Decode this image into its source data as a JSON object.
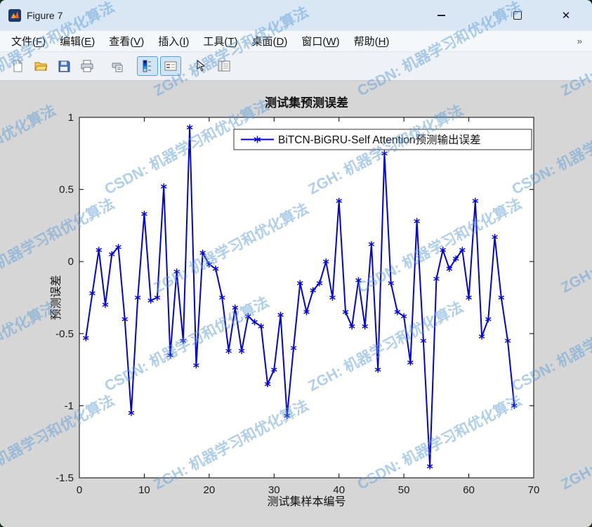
{
  "window": {
    "title": "Figure 7",
    "close_glyph": "✕"
  },
  "menu": {
    "items": [
      {
        "label": "文件",
        "key": "F"
      },
      {
        "label": "编辑",
        "key": "E"
      },
      {
        "label": "查看",
        "key": "V"
      },
      {
        "label": "插入",
        "key": "I"
      },
      {
        "label": "工具",
        "key": "T"
      },
      {
        "label": "桌面",
        "key": "D"
      },
      {
        "label": "窗口",
        "key": "W"
      },
      {
        "label": "帮助",
        "key": "H"
      }
    ],
    "overflow_glyph": "»"
  },
  "toolbar": {
    "buttons": [
      {
        "icon": "new-figure",
        "active": false
      },
      {
        "icon": "open-file",
        "active": false
      },
      {
        "icon": "save-figure",
        "active": false
      },
      {
        "icon": "print-figure",
        "active": false
      },
      {
        "icon": "print-preview",
        "active": false,
        "gap": true
      },
      {
        "icon": "insert-colorbar",
        "active": true,
        "gap": true
      },
      {
        "icon": "insert-legend",
        "active": true
      },
      {
        "icon": "edit-plot",
        "active": false,
        "gap": true
      },
      {
        "icon": "plot-browser",
        "active": false
      }
    ]
  },
  "watermark": {
    "texts": [
      "ZGH: 机器学习和优化算法",
      "CSDN: 机器学习和优化算法"
    ],
    "color": "rgba(96,158,214,0.5)"
  },
  "chart_data": {
    "type": "line",
    "title": "测试集预测误差",
    "xlabel": "测试集样本编号",
    "ylabel": "预测误差",
    "xlim": [
      0,
      70
    ],
    "ylim": [
      -1.5,
      1
    ],
    "xticks": [
      0,
      10,
      20,
      30,
      40,
      50,
      60,
      70
    ],
    "yticks": [
      1,
      0.5,
      0,
      -0.5,
      -1,
      -1.5
    ],
    "grid": false,
    "legend_position": "top-inside",
    "series": [
      {
        "name": "BiTCN-BiGRU-Self Attention预测输出误差",
        "color": "#0000E0",
        "marker": "*",
        "x_start": 1,
        "values": [
          -0.53,
          -0.22,
          0.08,
          -0.3,
          0.05,
          0.1,
          -0.4,
          -1.05,
          -0.25,
          0.33,
          -0.27,
          -0.25,
          0.52,
          -0.65,
          -0.07,
          -0.55,
          0.93,
          -0.72,
          0.06,
          -0.02,
          -0.05,
          -0.25,
          -0.62,
          -0.32,
          -0.62,
          -0.38,
          -0.42,
          -0.45,
          -0.85,
          -0.75,
          -0.37,
          -1.07,
          -0.6,
          -0.15,
          -0.35,
          -0.2,
          -0.15,
          0.0,
          -0.25,
          0.42,
          -0.35,
          -0.45,
          -0.13,
          -0.45,
          0.12,
          -0.75,
          0.75,
          -0.15,
          -0.35,
          -0.38,
          -0.7,
          0.28,
          -0.55,
          -1.42,
          -0.12,
          0.08,
          -0.05,
          0.02,
          0.08,
          -0.25,
          0.42,
          -0.52,
          -0.4,
          0.17,
          -0.25,
          -0.55,
          -1.0
        ]
      }
    ]
  }
}
